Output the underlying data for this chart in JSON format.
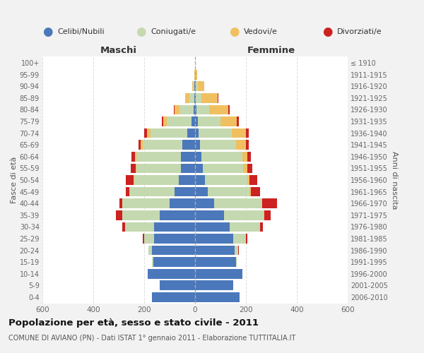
{
  "age_groups": [
    "0-4",
    "5-9",
    "10-14",
    "15-19",
    "20-24",
    "25-29",
    "30-34",
    "35-39",
    "40-44",
    "45-49",
    "50-54",
    "55-59",
    "60-64",
    "65-69",
    "70-74",
    "75-79",
    "80-84",
    "85-89",
    "90-94",
    "95-99",
    "100+"
  ],
  "birth_years": [
    "2006-2010",
    "2001-2005",
    "1996-2000",
    "1991-1995",
    "1986-1990",
    "1981-1985",
    "1976-1980",
    "1971-1975",
    "1966-1970",
    "1961-1965",
    "1956-1960",
    "1951-1955",
    "1946-1950",
    "1941-1945",
    "1936-1940",
    "1931-1935",
    "1926-1930",
    "1921-1925",
    "1916-1920",
    "1911-1915",
    "≤ 1910"
  ],
  "males": {
    "celibi": [
      170,
      140,
      185,
      165,
      170,
      160,
      160,
      140,
      100,
      80,
      65,
      55,
      55,
      50,
      30,
      15,
      5,
      3,
      2,
      0,
      0
    ],
    "coniugati": [
      0,
      0,
      0,
      4,
      12,
      40,
      115,
      145,
      185,
      175,
      175,
      175,
      175,
      155,
      145,
      95,
      55,
      20,
      5,
      1,
      0
    ],
    "vedovi": [
      0,
      0,
      0,
      0,
      0,
      0,
      0,
      0,
      1,
      2,
      2,
      2,
      5,
      8,
      15,
      15,
      20,
      15,
      5,
      1,
      0
    ],
    "divorziati": [
      0,
      0,
      0,
      0,
      0,
      5,
      10,
      25,
      12,
      15,
      30,
      20,
      15,
      10,
      10,
      5,
      2,
      0,
      0,
      0,
      0
    ]
  },
  "females": {
    "nubili": [
      175,
      150,
      185,
      160,
      155,
      150,
      135,
      115,
      75,
      50,
      40,
      30,
      25,
      20,
      15,
      10,
      5,
      4,
      3,
      0,
      0
    ],
    "coniugate": [
      0,
      0,
      0,
      5,
      15,
      50,
      120,
      155,
      185,
      165,
      165,
      160,
      160,
      140,
      130,
      90,
      50,
      20,
      8,
      2,
      0
    ],
    "vedove": [
      0,
      0,
      0,
      0,
      0,
      0,
      1,
      2,
      3,
      5,
      10,
      15,
      20,
      40,
      55,
      65,
      75,
      65,
      25,
      5,
      1
    ],
    "divorziate": [
      0,
      0,
      0,
      0,
      2,
      5,
      10,
      25,
      60,
      35,
      30,
      20,
      15,
      10,
      10,
      8,
      5,
      2,
      0,
      0,
      0
    ]
  },
  "colors": {
    "celibi": "#4b78bb",
    "coniugati": "#c5d9b0",
    "vedovi": "#f0c060",
    "divorziati": "#cc2222"
  },
  "xlim": 600,
  "title": "Popolazione per età, sesso e stato civile - 2011",
  "subtitle": "COMUNE DI AVIANO (PN) - Dati ISTAT 1° gennaio 2011 - Elaborazione TUTTITALIA.IT",
  "label_maschi": "Maschi",
  "label_femmine": "Femmine",
  "label_fasce": "Fasce di età",
  "label_anni": "Anni di nascita",
  "legend_labels": [
    "Celibi/Nubili",
    "Coniugati/e",
    "Vedovi/e",
    "Divorziati/e"
  ],
  "bg_color": "#f2f2f2",
  "plot_bg": "#ffffff",
  "grid_color": "#dddddd"
}
